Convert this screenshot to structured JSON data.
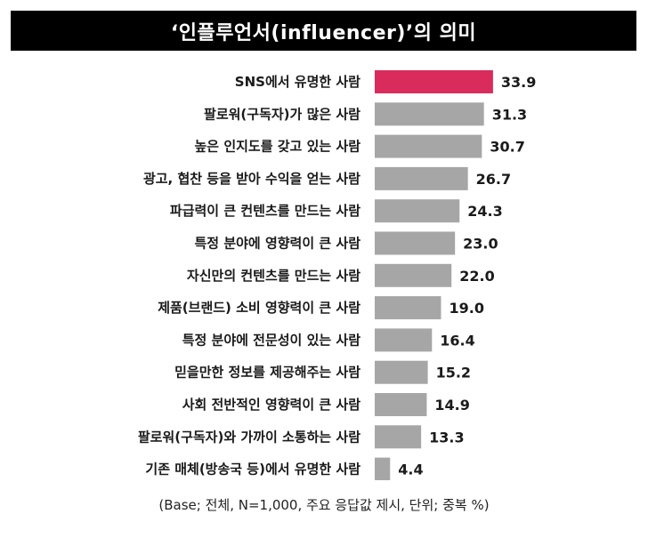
{
  "chart_data": {
    "type": "bar",
    "orientation": "horizontal",
    "title": "‘인플루언서(influencer)’의 의미",
    "categories": [
      "SNS에서 유명한 사람",
      "팔로워(구독자)가 많은 사람",
      "높은 인지도를 갖고 있는 사람",
      "광고, 협찬 등을 받아 수익을 얻는 사람",
      "파급력이 큰 컨텐츠를 만드는 사람",
      "특정 분야에 영향력이 큰 사람",
      "자신만의 컨텐츠를 만드는 사람",
      "제품(브랜드) 소비 영향력이 큰 사람",
      "특정 분야에 전문성이 있는 사람",
      "믿을만한 정보를 제공해주는 사람",
      "사회 전반적인 영향력이 큰 사람",
      "팔로워(구독자)와 가까이 소통하는 사람",
      "기존 매체(방송국 등)에서 유명한 사람"
    ],
    "values": [
      33.9,
      31.3,
      30.7,
      26.7,
      24.3,
      23.0,
      22.0,
      19.0,
      16.4,
      15.2,
      14.9,
      13.3,
      4.4
    ],
    "value_labels": [
      "33.9",
      "31.3",
      "30.7",
      "26.7",
      "24.3",
      "23.0",
      "22.0",
      "19.0",
      "16.4",
      "15.2",
      "14.9",
      "13.3",
      "4.4"
    ],
    "highlight_index": 0,
    "colors": {
      "highlight": "#d92b5c",
      "default": "#a6a6a6"
    },
    "xlim": [
      0,
      35
    ],
    "grid": false,
    "legend": "none",
    "footnote": "(Base; 전체, N=1,000, 주요 응답값 제시, 단위; 중복 %)"
  }
}
